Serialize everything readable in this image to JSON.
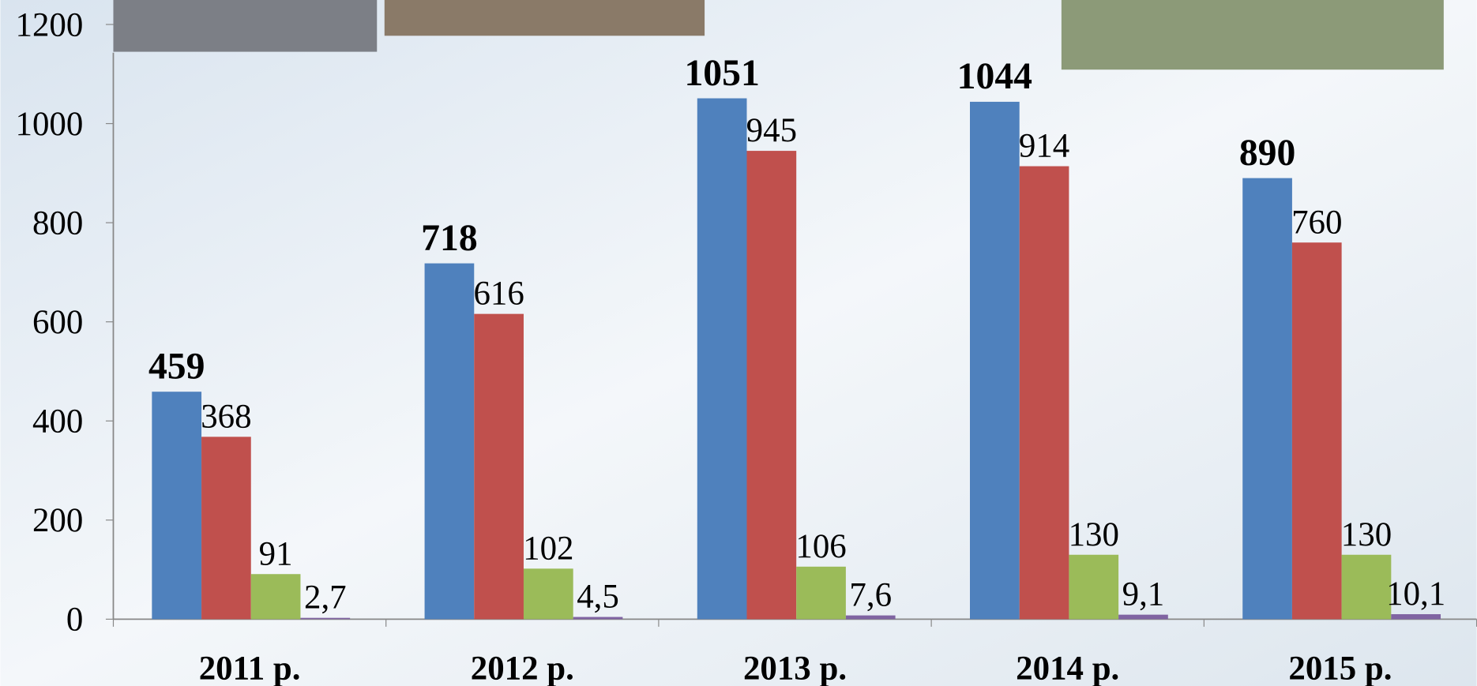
{
  "chart_data": {
    "type": "bar",
    "categories": [
      "2011 р.",
      "2012 р.",
      "2013 р.",
      "2014 р.",
      "2015 р."
    ],
    "series": [
      {
        "color": "#4f81bd",
        "values": [
          459,
          718,
          1051,
          1044,
          890
        ]
      },
      {
        "color": "#c0504d",
        "values": [
          368,
          616,
          945,
          914,
          760
        ]
      },
      {
        "color": "#9bbb59",
        "values": [
          91,
          102,
          106,
          130,
          130
        ]
      },
      {
        "color": "#8064a2",
        "values": [
          2.7,
          4.5,
          7.6,
          9.1,
          10.1
        ],
        "value_labels": [
          "2,7",
          "4,5",
          "7,6",
          "9,1",
          "10,1"
        ]
      }
    ],
    "ylim": [
      0,
      1200
    ],
    "yticks": [
      0,
      200,
      400,
      600,
      800,
      1000,
      1200
    ]
  }
}
